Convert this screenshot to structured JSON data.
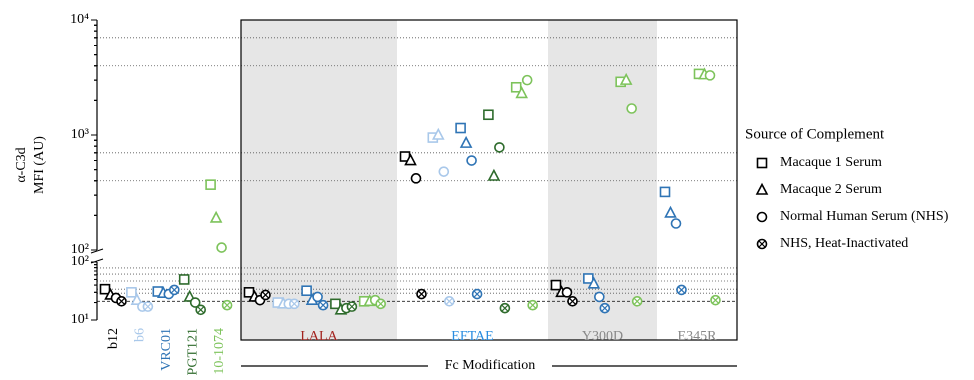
{
  "chart_data": {
    "type": "scatter",
    "y_label": [
      "α-C3d",
      "MFI (AU)"
    ],
    "x_label": "Fc Modification",
    "legend_title": "Source of Complement",
    "log_scale": true,
    "y_segments": [
      {
        "ylim": [
          10,
          100
        ],
        "yticks": [
          {
            "value": 10,
            "label": "10¹"
          },
          {
            "value": 100,
            "label": "10²"
          }
        ]
      },
      {
        "ylim": [
          100,
          10000
        ],
        "yticks": [
          {
            "value": 100,
            "label": "10²"
          },
          {
            "value": 1000,
            "label": "10³"
          },
          {
            "value": 10000,
            "label": "10⁴"
          }
        ]
      }
    ],
    "ref_lines": [
      7000,
      4000,
      700,
      400,
      79,
      62,
      47,
      34,
      29
    ],
    "dashed_ref_line": 21,
    "antibodies": [
      {
        "name": "b12",
        "color": "#000000"
      },
      {
        "name": "b6",
        "color": "#a9c8ea"
      },
      {
        "name": "VRC01",
        "color": "#2f74b5"
      },
      {
        "name": "PGT121",
        "color": "#2e6b2c"
      },
      {
        "name": "10-1074",
        "color": "#7dc35b"
      }
    ],
    "groups": [
      {
        "name": null,
        "shade": false,
        "color": "#000000"
      },
      {
        "name": "LALA",
        "shade": true,
        "color": "#a3231f"
      },
      {
        "name": "EFTAE",
        "shade": false,
        "color": "#2a8de0"
      },
      {
        "name": "Y300D",
        "shade": true,
        "color": "#888888"
      },
      {
        "name": "E345R",
        "shade": false,
        "color": "#888888"
      }
    ],
    "series": [
      {
        "name": "Macaque 1 Serum",
        "marker": "square",
        "values": [
          34,
          30,
          31,
          50,
          370,
          30,
          20,
          32,
          19,
          21,
          650,
          950,
          1150,
          1500,
          2600,
          40,
          null,
          52,
          null,
          2900,
          null,
          null,
          320,
          null,
          3400
        ]
      },
      {
        "name": "Macaque 2 Serum",
        "marker": "triangle",
        "values": [
          27,
          22,
          29,
          25,
          190,
          25,
          19,
          22,
          15,
          21,
          600,
          1000,
          850,
          440,
          2300,
          30,
          null,
          42,
          null,
          3000,
          null,
          null,
          210,
          null,
          3350
        ]
      },
      {
        "name": "Normal Human Serum (NHS)",
        "marker": "circle",
        "values": [
          24,
          17,
          28,
          20,
          105,
          22,
          19,
          25,
          16,
          22,
          420,
          480,
          600,
          780,
          3000,
          30,
          null,
          25,
          null,
          1700,
          null,
          null,
          170,
          null,
          3300
        ]
      },
      {
        "name": "NHS, Heat-Inactivated",
        "marker": "circle-x",
        "values": [
          21,
          17,
          33,
          15,
          18,
          27,
          19,
          18,
          17,
          19,
          28,
          21,
          28,
          16,
          18,
          21,
          null,
          16,
          null,
          21,
          null,
          null,
          33,
          null,
          22
        ]
      }
    ]
  }
}
